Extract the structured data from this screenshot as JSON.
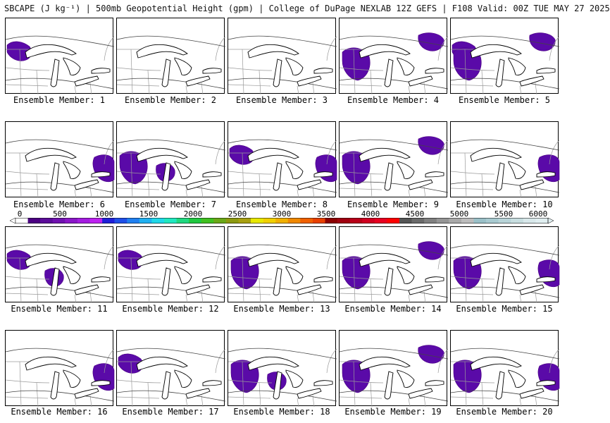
{
  "title": "SBCAPE (J kg⁻¹) | 500mb Geopotential Height (gpm) | College of DuPage NEXLAB 12Z GEFS | F108 Valid: 00Z TUE MAY 27 2025",
  "members": [
    {
      "label": "Ensemble Member: 1",
      "cape_regions": [
        "northwest"
      ]
    },
    {
      "label": "Ensemble Member: 2",
      "cape_regions": []
    },
    {
      "label": "Ensemble Member: 3",
      "cape_regions": []
    },
    {
      "label": "Ensemble Member: 4",
      "cape_regions": [
        "west",
        "northeast"
      ]
    },
    {
      "label": "Ensemble Member: 5",
      "cape_regions": [
        "northwest",
        "west",
        "northeast"
      ]
    },
    {
      "label": "Ensemble Member: 6",
      "cape_regions": [
        "east"
      ]
    },
    {
      "label": "Ensemble Member: 7",
      "cape_regions": [
        "west",
        "central"
      ]
    },
    {
      "label": "Ensemble Member: 8",
      "cape_regions": [
        "northwest",
        "east"
      ]
    },
    {
      "label": "Ensemble Member: 9",
      "cape_regions": [
        "west",
        "northeast"
      ]
    },
    {
      "label": "Ensemble Member: 10",
      "cape_regions": [
        "east"
      ]
    },
    {
      "label": "Ensemble Member: 11",
      "cape_regions": [
        "northwest",
        "central"
      ]
    },
    {
      "label": "Ensemble Member: 12",
      "cape_regions": [
        "northwest"
      ]
    },
    {
      "label": "Ensemble Member: 13",
      "cape_regions": [
        "west"
      ]
    },
    {
      "label": "Ensemble Member: 14",
      "cape_regions": [
        "west",
        "northeast"
      ]
    },
    {
      "label": "Ensemble Member: 15",
      "cape_regions": [
        "west",
        "east"
      ]
    },
    {
      "label": "Ensemble Member: 16",
      "cape_regions": [
        "east"
      ]
    },
    {
      "label": "Ensemble Member: 17",
      "cape_regions": [
        "northwest"
      ]
    },
    {
      "label": "Ensemble Member: 18",
      "cape_regions": [
        "west",
        "central"
      ]
    },
    {
      "label": "Ensemble Member: 19",
      "cape_regions": [
        "west",
        "northeast"
      ]
    },
    {
      "label": "Ensemble Member: 20",
      "cape_regions": [
        "west",
        "east"
      ]
    }
  ],
  "colorbar": {
    "tick_labels": [
      "0",
      "500",
      "1000",
      "1500",
      "2000",
      "2500",
      "3000",
      "3500",
      "4000",
      "4500",
      "5000",
      "5500",
      "6000"
    ],
    "colors": [
      "#ffffff",
      "#4b0082",
      "#5c0d9a",
      "#7012b0",
      "#8a17c8",
      "#a41ce0",
      "#bd22f0",
      "#1f1fd8",
      "#1f4fe8",
      "#2080f0",
      "#20b0f0",
      "#20d8e8",
      "#20e8c0",
      "#20d880",
      "#20c840",
      "#40c020",
      "#6aa818",
      "#8c9a10",
      "#a8a010",
      "#e8e800",
      "#f0d000",
      "#f0b000",
      "#f08800",
      "#f06000",
      "#e84000",
      "#8b0000",
      "#a00010",
      "#b80018",
      "#d00020",
      "#e80020",
      "#ff0000",
      "#555555",
      "#6a6a6a",
      "#808080",
      "#959595",
      "#a8a8a8",
      "#bcbcbc",
      "#9ac0c8",
      "#a8cad0",
      "#b8d4d8",
      "#c8dee0",
      "#d8e8ea",
      "#e0eef0"
    ]
  },
  "cape_color": "#5a0aa8",
  "cape_color_dark": "#4b0082"
}
